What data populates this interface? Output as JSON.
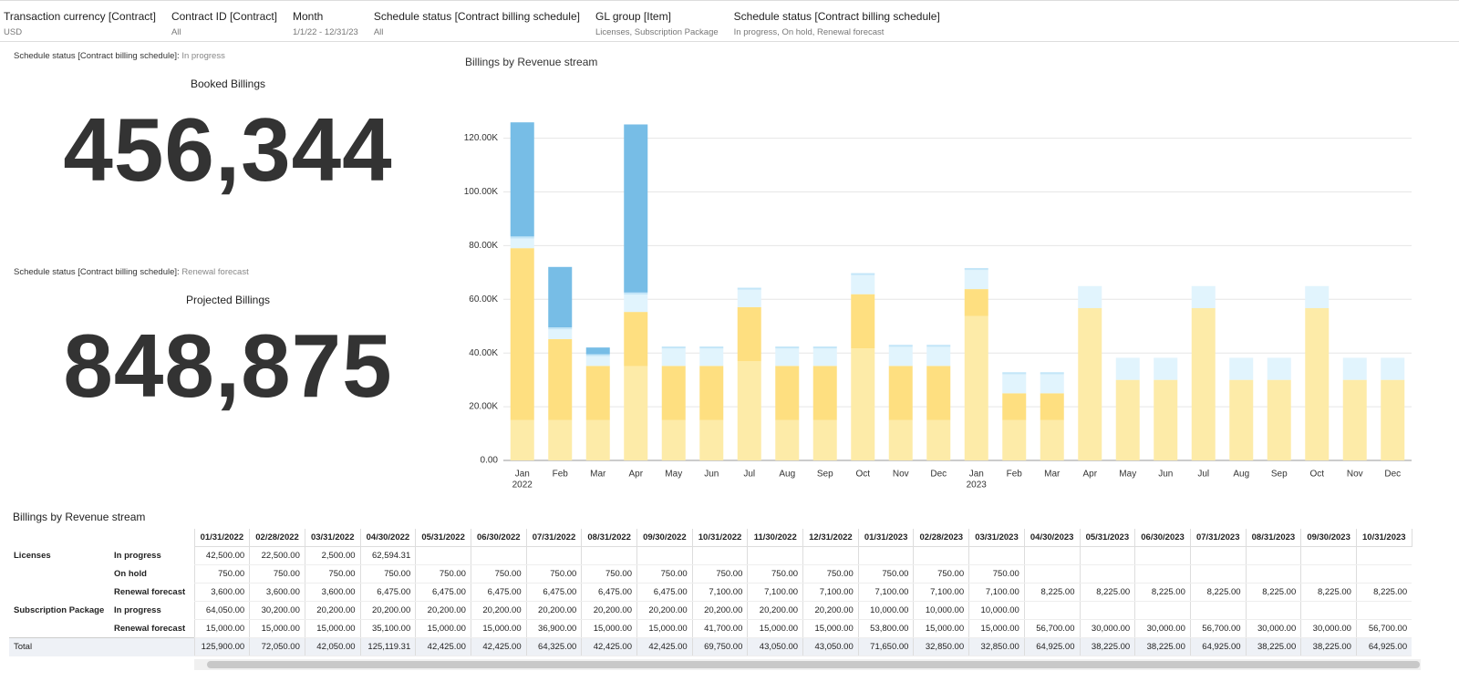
{
  "filters": [
    {
      "label": "Transaction currency [Contract]",
      "value": "USD"
    },
    {
      "label": "Contract ID [Contract]",
      "value": "All"
    },
    {
      "label": "Month",
      "value": "1/1/22 - 12/31/23"
    },
    {
      "label": "Schedule status [Contract billing schedule]",
      "value": "All"
    },
    {
      "label": "GL group [Item]",
      "value": "Licenses, Subscription Package"
    },
    {
      "label": "Schedule status [Contract billing schedule]",
      "value": "In progress, On hold, Renewal forecast"
    }
  ],
  "kpis": [
    {
      "filter_label": "Schedule status [Contract billing schedule]:",
      "filter_value": "In progress",
      "title": "Booked Billings",
      "value": "456,344"
    },
    {
      "filter_label": "Schedule status [Contract billing schedule]:",
      "filter_value": "Renewal forecast",
      "title": "Projected Billings",
      "value": "848,875"
    }
  ],
  "chart_data": {
    "type": "stacked-bar",
    "title": "Billings by Revenue stream",
    "categories": [
      "Jan",
      "Feb",
      "Mar",
      "Apr",
      "May",
      "Jun",
      "Jul",
      "Aug",
      "Sep",
      "Oct",
      "Nov",
      "Dec",
      "Jan",
      "Feb",
      "Mar",
      "Apr",
      "May",
      "Jun",
      "Jul",
      "Aug",
      "Sep",
      "Oct",
      "Nov",
      "Dec"
    ],
    "years": [
      "2022",
      null,
      null,
      null,
      null,
      null,
      null,
      null,
      null,
      null,
      null,
      null,
      "2023",
      null,
      null,
      null,
      null,
      null,
      null,
      null,
      null,
      null,
      null,
      null
    ],
    "series": [
      {
        "color": "#fdeba8",
        "values": [
          15000,
          15000,
          15000,
          35100,
          15000,
          15000,
          36900,
          15000,
          15000,
          41700,
          15000,
          15000,
          53800,
          15000,
          15000,
          56700,
          30000,
          30000,
          56700,
          30000,
          30000,
          56700,
          30000,
          30000
        ]
      },
      {
        "color": "#fedf80",
        "values": [
          64050,
          30200,
          20200,
          20200,
          20200,
          20200,
          20200,
          20200,
          20200,
          20200,
          20200,
          20200,
          10000,
          10000,
          10000,
          null,
          null,
          null,
          null,
          null,
          null,
          null,
          null,
          null
        ]
      },
      {
        "color": "#e1f4fd",
        "values": [
          3600,
          3600,
          3600,
          6475,
          6475,
          6475,
          6475,
          6475,
          6475,
          7100,
          7100,
          7100,
          7100,
          7100,
          7100,
          8225,
          8225,
          8225,
          8225,
          8225,
          8225,
          8225,
          8225,
          8225
        ]
      },
      {
        "color": "#c4e6f8",
        "values": [
          750,
          750,
          750,
          750,
          750,
          750,
          750,
          750,
          750,
          750,
          750,
          750,
          750,
          750,
          750,
          null,
          null,
          null,
          null,
          null,
          null,
          null,
          null,
          null
        ]
      },
      {
        "color": "#77bde6",
        "values": [
          42500,
          22500,
          2500,
          62594.31,
          null,
          null,
          null,
          null,
          null,
          null,
          null,
          null,
          null,
          null,
          null,
          null,
          null,
          null,
          null,
          null,
          null,
          null,
          null,
          null
        ]
      }
    ],
    "ylim": [
      0,
      128000
    ],
    "yticks": [
      {
        "value": 0,
        "label": "0.00"
      },
      {
        "value": 20000,
        "label": "20.00K"
      },
      {
        "value": 40000,
        "label": "40.00K"
      },
      {
        "value": 60000,
        "label": "60.00K"
      },
      {
        "value": 80000,
        "label": "80.00K"
      },
      {
        "value": 100000,
        "label": "100.00K"
      },
      {
        "value": 120000,
        "label": "120.00K"
      }
    ],
    "grid": true
  },
  "table": {
    "title": "Billings by Revenue stream",
    "columns": [
      "01/31/2022",
      "02/28/2022",
      "03/31/2022",
      "04/30/2022",
      "05/31/2022",
      "06/30/2022",
      "07/31/2022",
      "08/31/2022",
      "09/30/2022",
      "10/31/2022",
      "11/30/2022",
      "12/31/2022",
      "01/31/2023",
      "02/28/2023",
      "03/31/2023",
      "04/30/2023",
      "05/31/2023",
      "06/30/2023",
      "07/31/2023",
      "08/31/2023",
      "09/30/2023",
      "10/31/2023"
    ],
    "groups": [
      {
        "label": "Licenses",
        "rows": [
          {
            "label": "In progress",
            "cells": [
              "42,500.00",
              "22,500.00",
              "2,500.00",
              "62,594.31",
              null,
              null,
              null,
              null,
              null,
              null,
              null,
              null,
              null,
              null,
              null,
              null,
              null,
              null,
              null,
              null,
              null,
              null
            ]
          },
          {
            "label": "On hold",
            "cells": [
              "750.00",
              "750.00",
              "750.00",
              "750.00",
              "750.00",
              "750.00",
              "750.00",
              "750.00",
              "750.00",
              "750.00",
              "750.00",
              "750.00",
              "750.00",
              "750.00",
              "750.00",
              null,
              null,
              null,
              null,
              null,
              null,
              null
            ]
          },
          {
            "label": "Renewal forecast",
            "cells": [
              "3,600.00",
              "3,600.00",
              "3,600.00",
              "6,475.00",
              "6,475.00",
              "6,475.00",
              "6,475.00",
              "6,475.00",
              "6,475.00",
              "7,100.00",
              "7,100.00",
              "7,100.00",
              "7,100.00",
              "7,100.00",
              "7,100.00",
              "8,225.00",
              "8,225.00",
              "8,225.00",
              "8,225.00",
              "8,225.00",
              "8,225.00",
              "8,225.00"
            ]
          }
        ]
      },
      {
        "label": "Subscription Package",
        "rows": [
          {
            "label": "In progress",
            "cells": [
              "64,050.00",
              "30,200.00",
              "20,200.00",
              "20,200.00",
              "20,200.00",
              "20,200.00",
              "20,200.00",
              "20,200.00",
              "20,200.00",
              "20,200.00",
              "20,200.00",
              "20,200.00",
              "10,000.00",
              "10,000.00",
              "10,000.00",
              null,
              null,
              null,
              null,
              null,
              null,
              null
            ]
          },
          {
            "label": "Renewal forecast",
            "cells": [
              "15,000.00",
              "15,000.00",
              "15,000.00",
              "35,100.00",
              "15,000.00",
              "15,000.00",
              "36,900.00",
              "15,000.00",
              "15,000.00",
              "41,700.00",
              "15,000.00",
              "15,000.00",
              "53,800.00",
              "15,000.00",
              "15,000.00",
              "56,700.00",
              "30,000.00",
              "30,000.00",
              "56,700.00",
              "30,000.00",
              "30,000.00",
              "56,700.00"
            ]
          }
        ]
      }
    ],
    "total": {
      "label": "Total",
      "cells": [
        "125,900.00",
        "72,050.00",
        "42,050.00",
        "125,119.31",
        "42,425.00",
        "42,425.00",
        "64,325.00",
        "42,425.00",
        "42,425.00",
        "69,750.00",
        "43,050.00",
        "43,050.00",
        "71,650.00",
        "32,850.00",
        "32,850.00",
        "64,925.00",
        "38,225.00",
        "38,225.00",
        "64,925.00",
        "38,225.00",
        "38,225.00",
        "64,925.00"
      ]
    }
  }
}
